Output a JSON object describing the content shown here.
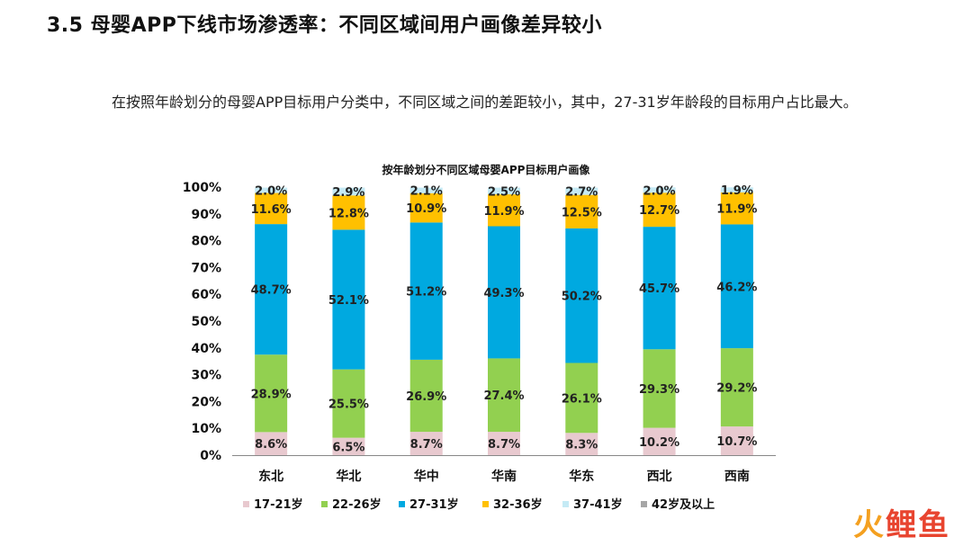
{
  "heading": "3.5 母婴APP下线市场渗透率：不同区域间用户画像差异较小",
  "paragraph": "在按照年龄划分的母婴APP目标用户分类中，不同区域之间的差距较小，其中，27-31岁年龄段的目标用户占比最大。",
  "watermark": {
    "part1": "火",
    "part2": "鲤鱼"
  },
  "chart_data": {
    "type": "bar",
    "stacked": true,
    "title": "按年龄划分不同区域母婴APP目标用户画像",
    "categories": [
      "东北",
      "华北",
      "华中",
      "华南",
      "华东",
      "西北",
      "西南"
    ],
    "ylim": [
      0,
      100
    ],
    "yticks": [
      "0%",
      "10%",
      "20%",
      "30%",
      "40%",
      "50%",
      "60%",
      "70%",
      "80%",
      "90%",
      "100%"
    ],
    "legend_position": "bottom",
    "series": [
      {
        "name": "17-21岁",
        "color": "#e8c9cf",
        "values": [
          8.6,
          6.5,
          8.7,
          8.7,
          8.3,
          10.2,
          10.7
        ]
      },
      {
        "name": "22-26岁",
        "color": "#92d050",
        "values": [
          28.9,
          25.5,
          26.9,
          27.4,
          26.1,
          29.3,
          29.2
        ]
      },
      {
        "name": "27-31岁",
        "color": "#00a9e0",
        "values": [
          48.7,
          52.1,
          51.2,
          49.3,
          50.2,
          45.7,
          46.2
        ]
      },
      {
        "name": "32-36岁",
        "color": "#ffc000",
        "values": [
          11.6,
          12.8,
          10.9,
          11.9,
          12.5,
          12.7,
          11.9
        ]
      },
      {
        "name": "37-41岁",
        "color": "#c5eaf5",
        "values": [
          2.0,
          2.9,
          2.1,
          2.5,
          2.7,
          2.0,
          1.9
        ]
      },
      {
        "name": "42岁及以上",
        "color": "#a6a6a6",
        "values": [
          0,
          0,
          0,
          0,
          0,
          0,
          0
        ]
      }
    ]
  }
}
